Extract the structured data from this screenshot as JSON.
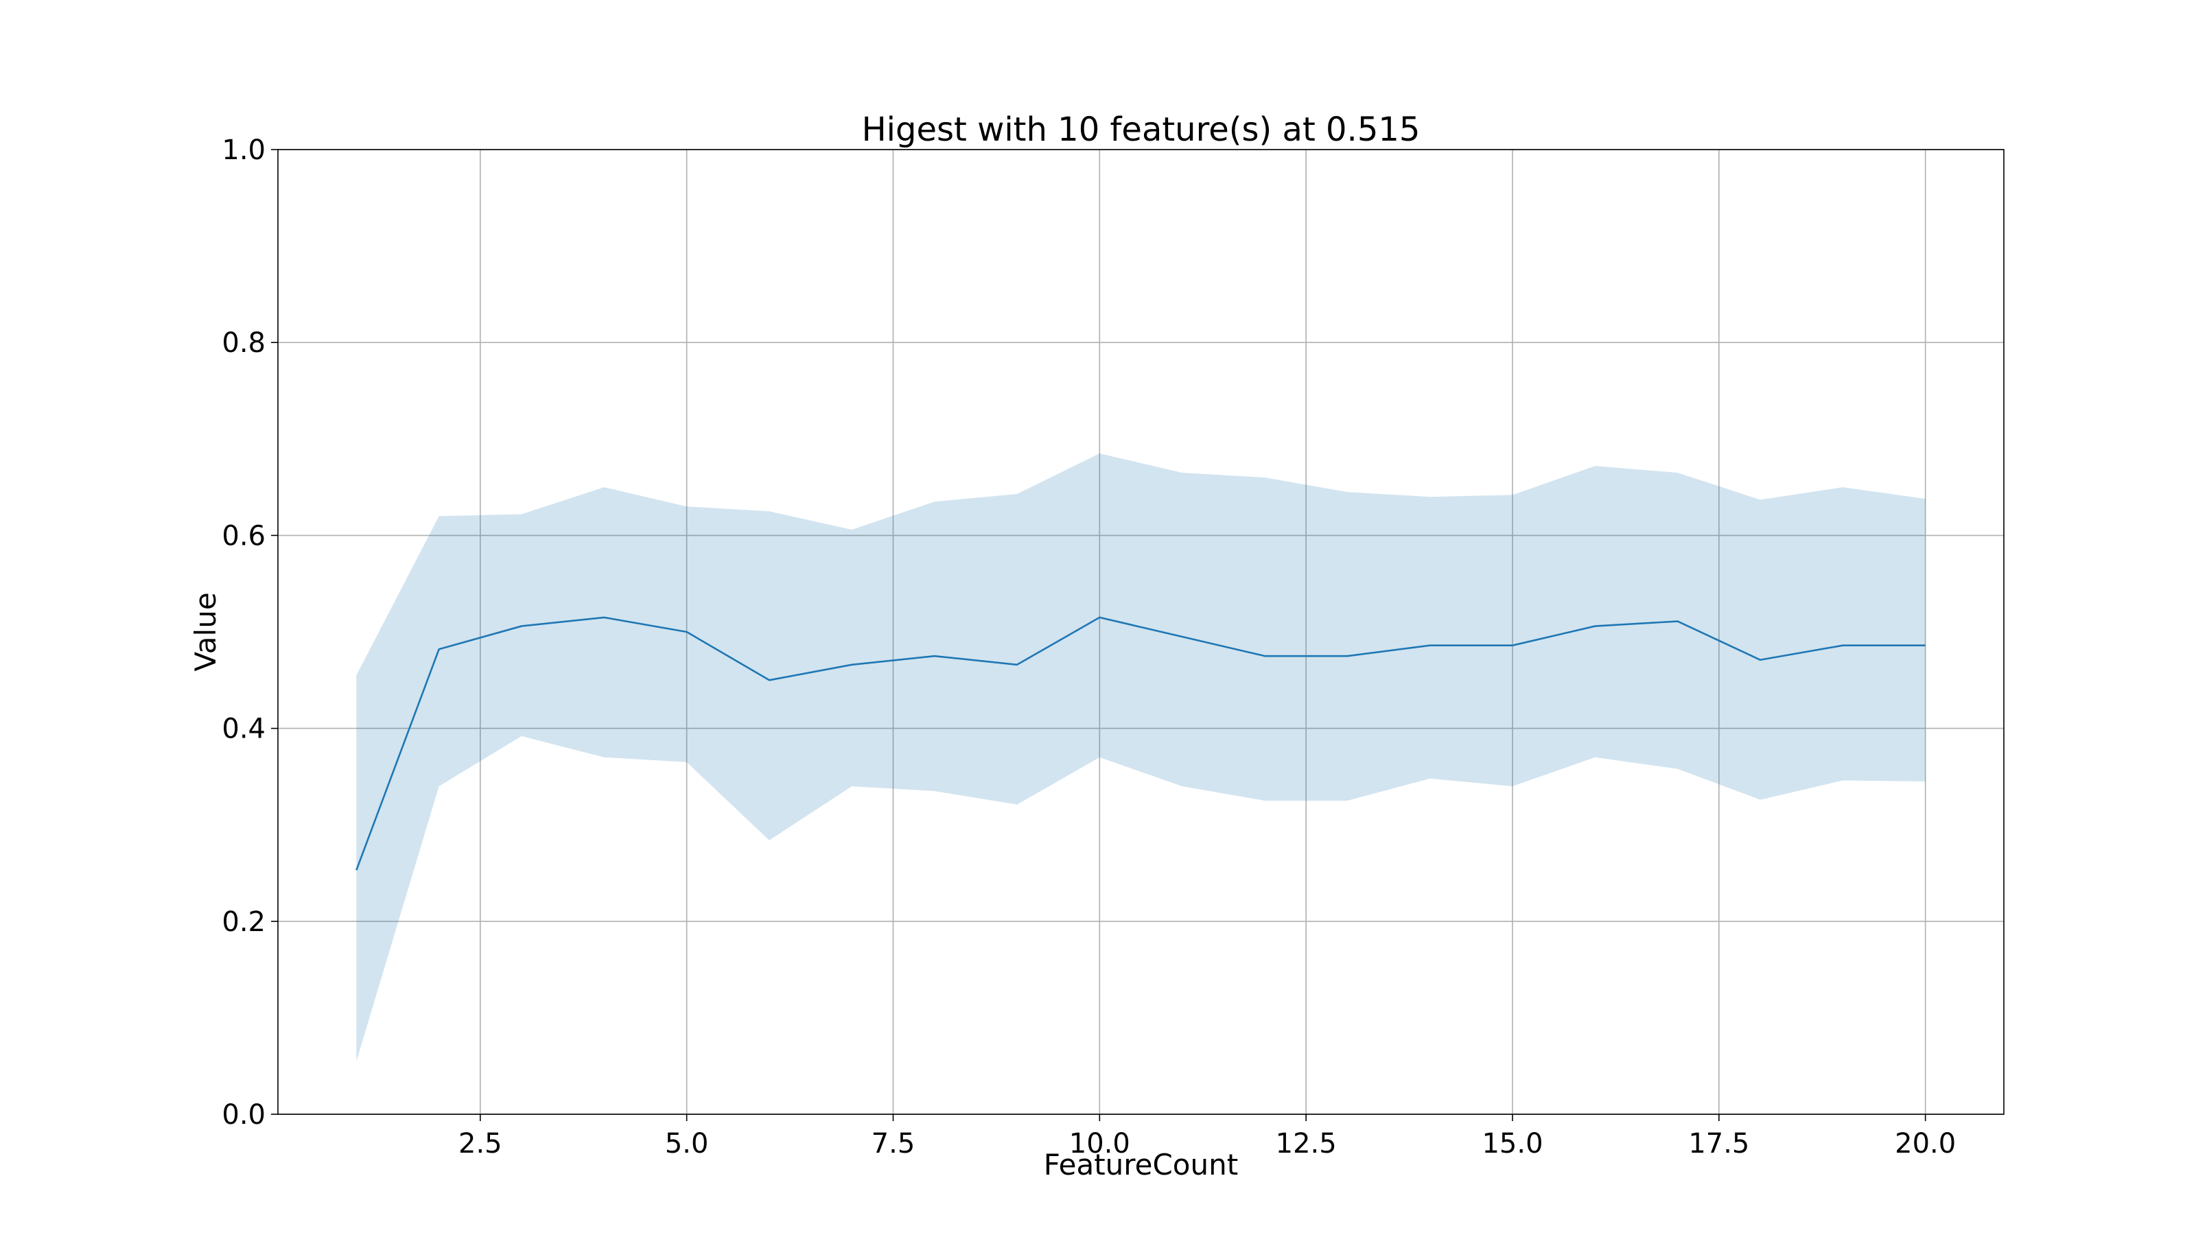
{
  "chart_data": {
    "type": "line",
    "title": "Higest with 10 feature(s) at 0.515",
    "xlabel": "FeatureCount",
    "ylabel": "Value",
    "xlim": [
      0.05,
      20.95
    ],
    "ylim": [
      0.0,
      1.0
    ],
    "xticks": [
      2.5,
      5.0,
      7.5,
      10.0,
      12.5,
      15.0,
      17.5,
      20.0
    ],
    "xtick_labels": [
      "2.5",
      "5.0",
      "7.5",
      "10.0",
      "12.5",
      "15.0",
      "17.5",
      "20.0"
    ],
    "yticks": [
      0.0,
      0.2,
      0.4,
      0.6,
      0.8,
      1.0
    ],
    "ytick_labels": [
      "0.0",
      "0.2",
      "0.4",
      "0.6",
      "0.8",
      "1.0"
    ],
    "grid": true,
    "color": "#1f77b4",
    "x": [
      1,
      2,
      3,
      4,
      5,
      6,
      7,
      8,
      9,
      10,
      11,
      12,
      13,
      14,
      15,
      16,
      17,
      18,
      19,
      20
    ],
    "series": [
      {
        "values": [
          0.253,
          0.482,
          0.506,
          0.515,
          0.5,
          0.45,
          0.466,
          0.475,
          0.466,
          0.515,
          0.495,
          0.475,
          0.475,
          0.486,
          0.486,
          0.506,
          0.511,
          0.471,
          0.486,
          0.486
        ],
        "lower": [
          0.055,
          0.34,
          0.392,
          0.37,
          0.365,
          0.284,
          0.34,
          0.335,
          0.321,
          0.37,
          0.34,
          0.325,
          0.325,
          0.348,
          0.34,
          0.37,
          0.358,
          0.326,
          0.346,
          0.345
        ],
        "upper": [
          0.455,
          0.62,
          0.622,
          0.65,
          0.63,
          0.625,
          0.606,
          0.635,
          0.643,
          0.685,
          0.665,
          0.66,
          0.645,
          0.64,
          0.642,
          0.672,
          0.665,
          0.637,
          0.65,
          0.638
        ]
      }
    ]
  }
}
